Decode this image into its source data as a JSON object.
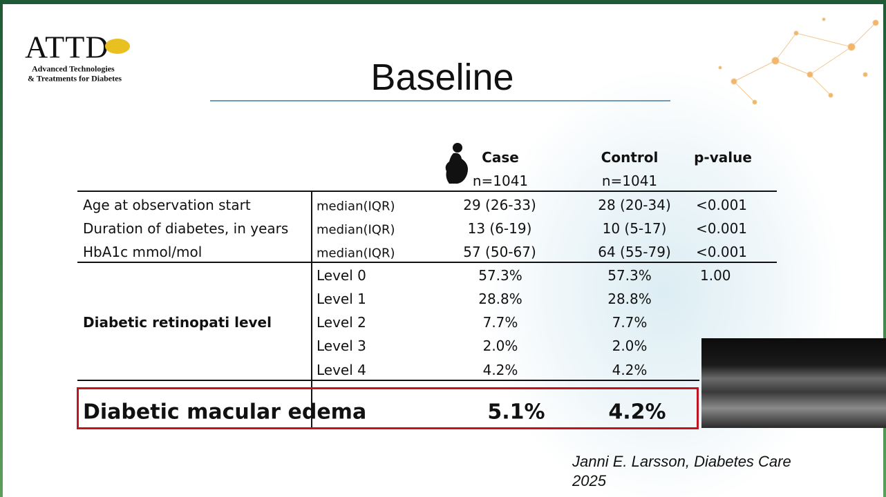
{
  "logo": {
    "mark": "ATTD",
    "line1": "Advanced Technologies",
    "line2": "& Treatments for Diabetes"
  },
  "title": "Baseline",
  "table": {
    "header": [
      {
        "name": "Case",
        "n": "n=1041"
      },
      {
        "name": "Control",
        "n": "n=1041"
      },
      {
        "name": "p-value"
      }
    ],
    "rows": [
      [
        "Age at observation start",
        "median(IQR)",
        "29 (26-33)",
        "28 (20-34)",
        "<0.001"
      ],
      [
        "Duration of diabetes, in years",
        "median(IQR)",
        "13 (6-19)",
        "10 (5-17)",
        "<0.001"
      ],
      [
        "HbA1c mmol/mol",
        "median(IQR)",
        "57 (50-67)",
        "64 (55-79)",
        "<0.001"
      ]
    ],
    "group": {
      "label": "Diabetic retinopati level",
      "rows": [
        [
          "Level 0",
          "57.3%",
          "57.3%",
          "1.00"
        ],
        [
          "Level 1",
          "28.8%",
          "28.8%"
        ],
        [
          "Level 2",
          "7.7%",
          "7.7%"
        ],
        [
          "Level 3",
          "2.0%",
          "2.0%"
        ],
        [
          "Level 4",
          "4.2%",
          "4.2%"
        ]
      ]
    },
    "highlight": [
      "Diabetic macular edema",
      "5.1%",
      "4.2%"
    ]
  },
  "citation": [
    "Janni E. Larsson, Diabetes Care",
    "2025"
  ]
}
